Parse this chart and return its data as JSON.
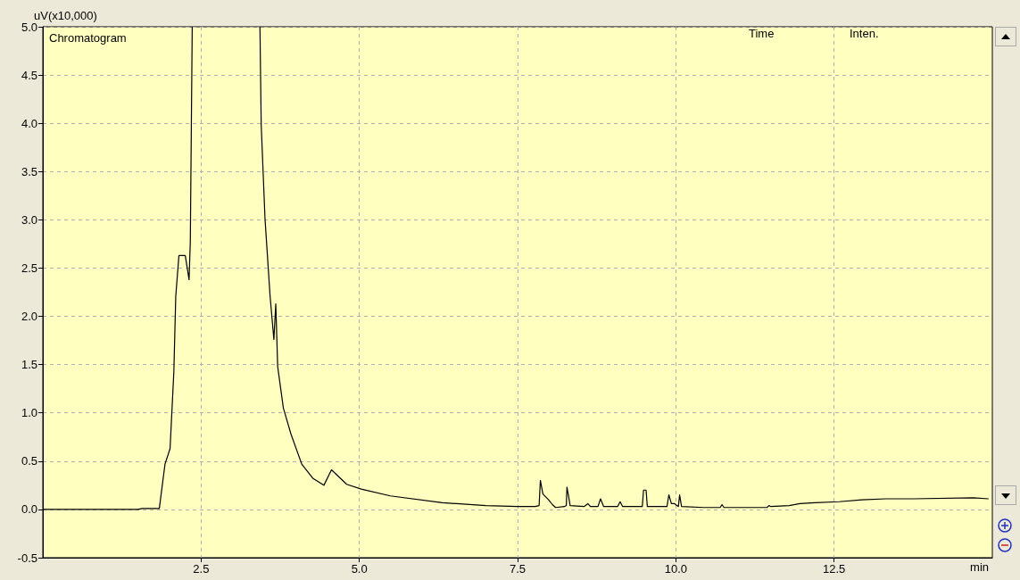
{
  "chart_data": {
    "type": "line",
    "title": "Chromatogram",
    "xlabel": "min",
    "ylabel": "uV(x10,000)",
    "annotations": [
      "Time",
      "Inten."
    ],
    "x": [
      0,
      1.5,
      1.57,
      1.84,
      1.93,
      2.01,
      2.07,
      2.1,
      2.15,
      2.25,
      2.31,
      2.33,
      2.36,
      2.4,
      3.43,
      3.45,
      3.51,
      3.59,
      3.65,
      3.68,
      3.71,
      3.8,
      3.92,
      4.09,
      4.27,
      4.44,
      4.56,
      4.8,
      5.03,
      5.49,
      6.31,
      7.0,
      7.5,
      7.78,
      7.84,
      7.86,
      7.9,
      7.99,
      8.05,
      8.1,
      8.24,
      8.27,
      8.28,
      8.31,
      8.33,
      8.55,
      8.61,
      8.65,
      8.77,
      8.81,
      8.86,
      9.08,
      9.12,
      9.16,
      9.47,
      9.49,
      9.53,
      9.55,
      9.86,
      9.89,
      9.93,
      9.98,
      10.04,
      10.06,
      10.09,
      10.44,
      10.7,
      10.73,
      10.76,
      11.44,
      11.47,
      11.5,
      11.79,
      11.96,
      12.2,
      12.58,
      12.94,
      13.32,
      13.75,
      14.7,
      14.94
    ],
    "series": [
      {
        "color": "#000000",
        "values": [
          0,
          0,
          0.01,
          0.01,
          0.47,
          0.63,
          1.43,
          2.21,
          2.63,
          2.63,
          2.38,
          2.78,
          5.0,
          null,
          5.0,
          3.98,
          3.01,
          2.21,
          1.76,
          2.13,
          1.48,
          1.05,
          0.78,
          0.47,
          0.32,
          0.25,
          0.41,
          0.26,
          0.21,
          0.14,
          0.07,
          0.04,
          0.03,
          0.03,
          0.04,
          0.3,
          0.16,
          0.1,
          0.05,
          0.02,
          0.03,
          0.04,
          0.23,
          0.12,
          0.04,
          0.03,
          0.06,
          0.03,
          0.03,
          0.11,
          0.03,
          0.03,
          0.08,
          0.03,
          0.03,
          0.2,
          0.2,
          0.03,
          0.03,
          0.15,
          0.06,
          0.06,
          0.03,
          0.15,
          0.03,
          0.02,
          0.02,
          0.05,
          0.02,
          0.02,
          0.04,
          0.03,
          0.04,
          0.06,
          0.07,
          0.08,
          0.1,
          0.11,
          0.11,
          0.12,
          0.11
        ]
      }
    ],
    "xlim": [
      0,
      15
    ],
    "xticks": [
      2.5,
      {
        "value": 5,
        "label": "5.0"
      },
      7.5,
      {
        "value": 10,
        "label": "10.0"
      },
      12.5
    ],
    "ylim": [
      -0.5,
      5.0
    ],
    "yticks": [
      -0.5,
      {
        "value": 0,
        "label": "0.0"
      },
      0.5,
      {
        "value": 1,
        "label": "1.0"
      },
      1.5,
      {
        "value": 2,
        "label": "2.0"
      },
      2.5,
      {
        "value": 3,
        "label": "3.0"
      },
      3.5,
      {
        "value": 4,
        "label": "4.0"
      },
      4.5,
      {
        "value": 5,
        "label": "5.0"
      }
    ],
    "grid": true,
    "marker": "none",
    "line_style": "solid"
  }
}
